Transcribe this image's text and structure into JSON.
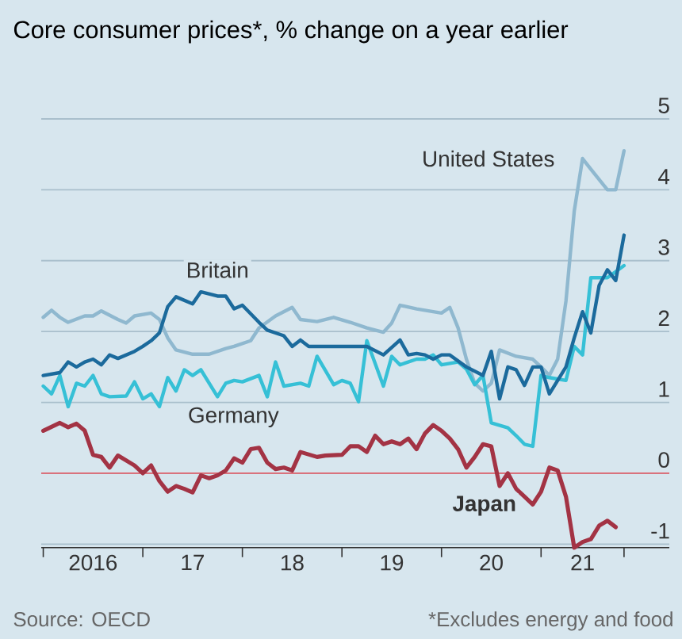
{
  "chart_data": {
    "type": "line",
    "title": "Core consumer prices*, % change on a year earlier",
    "annotations": [
      "Source: OECD",
      "*Excludes energy and food"
    ],
    "xlim": [
      "2015-12-24",
      "2022-04-15"
    ],
    "ylim": [
      -1.05,
      5
    ],
    "xticks": [
      {
        "value": "2016-01",
        "label": null
      },
      {
        "value": "2016-07",
        "label": "2016"
      },
      {
        "value": "2017-01",
        "label": null
      },
      {
        "value": "2017-07",
        "label": "17"
      },
      {
        "value": "2018-01",
        "label": null
      },
      {
        "value": "2018-07",
        "label": "18"
      },
      {
        "value": "2019-01",
        "label": null
      },
      {
        "value": "2019-07",
        "label": "19"
      },
      {
        "value": "2020-01",
        "label": null
      },
      {
        "value": "2020-07",
        "label": "20"
      },
      {
        "value": "2021-01",
        "label": null
      },
      {
        "value": "2021-06",
        "label": "21"
      },
      {
        "value": "2021-11",
        "label": null
      }
    ],
    "yticks": [
      -1,
      0,
      1,
      2,
      3,
      4,
      5
    ],
    "grid": "y",
    "ref_lines": [
      {
        "axis": "y",
        "value": 0,
        "color": "#e0606a"
      }
    ],
    "series": [
      {
        "name": "United States",
        "color": "#8fb8cf",
        "x": [
          "2016-01",
          "2016-02",
          "2016-03",
          "2016-04",
          "2016-06",
          "2016-07",
          "2016-08",
          "2016-10",
          "2016-11",
          "2016-12",
          "2017-02",
          "2017-03",
          "2017-04",
          "2017-05",
          "2017-07",
          "2017-09",
          "2017-11",
          "2017-12",
          "2018-02",
          "2018-03",
          "2018-05",
          "2018-07",
          "2018-08",
          "2018-10",
          "2018-12",
          "2019-02",
          "2019-04",
          "2019-06",
          "2019-07",
          "2019-08",
          "2019-10",
          "2019-12",
          "2020-01",
          "2020-02",
          "2020-03",
          "2020-04",
          "2020-05",
          "2020-06",
          "2020-07",
          "2020-08",
          "2020-10",
          "2020-12",
          "2021-01",
          "2021-02",
          "2021-03",
          "2021-04",
          "2021-05",
          "2021-06",
          "2021-07",
          "2021-09",
          "2021-10",
          "2021-11"
        ],
        "values": [
          2.2,
          2.3,
          2.2,
          2.13,
          2.22,
          2.22,
          2.29,
          2.17,
          2.12,
          2.22,
          2.26,
          2.17,
          1.91,
          1.74,
          1.68,
          1.68,
          1.76,
          1.79,
          1.87,
          2.05,
          2.22,
          2.34,
          2.17,
          2.14,
          2.2,
          2.13,
          2.05,
          1.99,
          2.12,
          2.37,
          2.32,
          2.28,
          2.26,
          2.34,
          2.05,
          1.61,
          1.27,
          1.16,
          1.27,
          1.74,
          1.65,
          1.61,
          1.5,
          1.38,
          1.61,
          2.43,
          3.7,
          4.44,
          4.29,
          4.0,
          4.0,
          4.55
        ]
      },
      {
        "name": "Britain",
        "color": "#1b6a9c",
        "x": [
          "2016-01",
          "2016-03",
          "2016-04",
          "2016-05",
          "2016-06",
          "2016-07",
          "2016-08",
          "2016-09",
          "2016-10",
          "2016-12",
          "2017-01",
          "2017-02",
          "2017-03",
          "2017-04",
          "2017-05",
          "2017-07",
          "2017-08",
          "2017-10",
          "2017-11",
          "2017-12",
          "2018-01",
          "2018-03",
          "2018-04",
          "2018-06",
          "2018-07",
          "2018-08",
          "2018-09",
          "2019-02",
          "2019-04",
          "2019-06",
          "2019-08",
          "2019-09",
          "2019-10",
          "2019-11",
          "2019-12",
          "2020-01",
          "2020-02",
          "2020-04",
          "2020-06",
          "2020-07",
          "2020-08",
          "2020-09",
          "2020-10",
          "2020-11",
          "2020-12",
          "2021-01",
          "2021-02",
          "2021-03",
          "2021-04",
          "2021-05",
          "2021-06",
          "2021-07",
          "2021-08",
          "2021-09",
          "2021-10",
          "2021-11"
        ],
        "values": [
          1.38,
          1.42,
          1.57,
          1.5,
          1.57,
          1.61,
          1.53,
          1.67,
          1.62,
          1.72,
          1.79,
          1.87,
          1.98,
          2.35,
          2.49,
          2.39,
          2.56,
          2.5,
          2.5,
          2.32,
          2.37,
          2.13,
          2.02,
          1.94,
          1.79,
          1.88,
          1.79,
          1.79,
          1.79,
          1.67,
          1.88,
          1.67,
          1.69,
          1.67,
          1.61,
          1.67,
          1.67,
          1.5,
          1.38,
          1.72,
          1.05,
          1.5,
          1.46,
          1.24,
          1.5,
          1.5,
          1.12,
          1.31,
          1.5,
          1.91,
          2.28,
          1.98,
          2.65,
          2.87,
          2.72,
          3.36
        ]
      },
      {
        "name": "Germany",
        "color": "#36c0d6",
        "x": [
          "2016-01",
          "2016-02",
          "2016-03",
          "2016-04",
          "2016-05",
          "2016-06",
          "2016-07",
          "2016-08",
          "2016-09",
          "2016-11",
          "2016-12",
          "2017-01",
          "2017-02",
          "2017-03",
          "2017-04",
          "2017-05",
          "2017-06",
          "2017-07",
          "2017-08",
          "2017-10",
          "2017-11",
          "2017-12",
          "2018-01",
          "2018-03",
          "2018-04",
          "2018-05",
          "2018-06",
          "2018-08",
          "2018-09",
          "2018-10",
          "2018-12",
          "2019-01",
          "2019-02",
          "2019-03",
          "2019-04",
          "2019-06",
          "2019-07",
          "2019-08",
          "2019-10",
          "2019-11",
          "2019-12",
          "2020-01",
          "2020-03",
          "2020-04",
          "2020-05",
          "2020-06",
          "2020-07",
          "2020-09",
          "2020-10",
          "2020-11",
          "2020-12",
          "2021-01",
          "2021-02",
          "2021-04",
          "2021-05",
          "2021-06",
          "2021-07",
          "2021-08",
          "2021-09",
          "2021-11"
        ],
        "values": [
          1.23,
          1.12,
          1.38,
          0.94,
          1.27,
          1.23,
          1.38,
          1.12,
          1.08,
          1.09,
          1.29,
          1.05,
          1.12,
          0.94,
          1.35,
          1.16,
          1.46,
          1.38,
          1.46,
          1.08,
          1.27,
          1.31,
          1.29,
          1.38,
          1.08,
          1.57,
          1.23,
          1.27,
          1.23,
          1.65,
          1.25,
          1.31,
          1.27,
          1.01,
          1.87,
          1.23,
          1.65,
          1.53,
          1.61,
          1.61,
          1.67,
          1.53,
          1.57,
          1.47,
          1.25,
          1.38,
          0.71,
          0.64,
          0.53,
          0.41,
          0.38,
          1.38,
          1.35,
          1.31,
          1.79,
          1.67,
          2.76,
          2.76,
          2.76,
          2.93
        ]
      },
      {
        "name": "Japan",
        "color": "#a33344",
        "x": [
          "2016-01",
          "2016-03",
          "2016-04",
          "2016-05",
          "2016-06",
          "2016-07",
          "2016-08",
          "2016-09",
          "2016-10",
          "2016-12",
          "2017-01",
          "2017-02",
          "2017-03",
          "2017-04",
          "2017-05",
          "2017-06",
          "2017-07",
          "2017-08",
          "2017-09",
          "2017-10",
          "2017-11",
          "2017-12",
          "2018-01",
          "2018-02",
          "2018-03",
          "2018-04",
          "2018-05",
          "2018-06",
          "2018-07",
          "2018-08",
          "2018-10",
          "2018-11",
          "2019-01",
          "2019-02",
          "2019-03",
          "2019-04",
          "2019-05",
          "2019-06",
          "2019-07",
          "2019-08",
          "2019-09",
          "2019-10",
          "2019-11",
          "2019-12",
          "2020-01",
          "2020-02",
          "2020-03",
          "2020-04",
          "2020-05",
          "2020-06",
          "2020-07",
          "2020-08",
          "2020-09",
          "2020-10",
          "2020-11",
          "2020-12",
          "2021-01",
          "2021-02",
          "2021-03",
          "2021-04",
          "2021-05",
          "2021-06",
          "2021-07",
          "2021-08",
          "2021-09",
          "2021-10"
        ],
        "values": [
          0.6,
          0.71,
          0.65,
          0.7,
          0.6,
          0.26,
          0.23,
          0.08,
          0.25,
          0.11,
          0.0,
          0.11,
          -0.11,
          -0.26,
          -0.18,
          -0.22,
          -0.27,
          -0.03,
          -0.07,
          -0.03,
          0.04,
          0.21,
          0.15,
          0.34,
          0.36,
          0.15,
          0.06,
          0.08,
          0.04,
          0.3,
          0.23,
          0.25,
          0.26,
          0.38,
          0.38,
          0.3,
          0.53,
          0.41,
          0.45,
          0.41,
          0.49,
          0.34,
          0.56,
          0.68,
          0.6,
          0.49,
          0.34,
          0.08,
          0.23,
          0.41,
          0.38,
          -0.18,
          0.0,
          -0.22,
          -0.33,
          -0.44,
          -0.26,
          0.08,
          0.04,
          -0.33,
          -1.05,
          -0.97,
          -0.93,
          -0.74,
          -0.67,
          -0.76
        ]
      }
    ]
  }
}
